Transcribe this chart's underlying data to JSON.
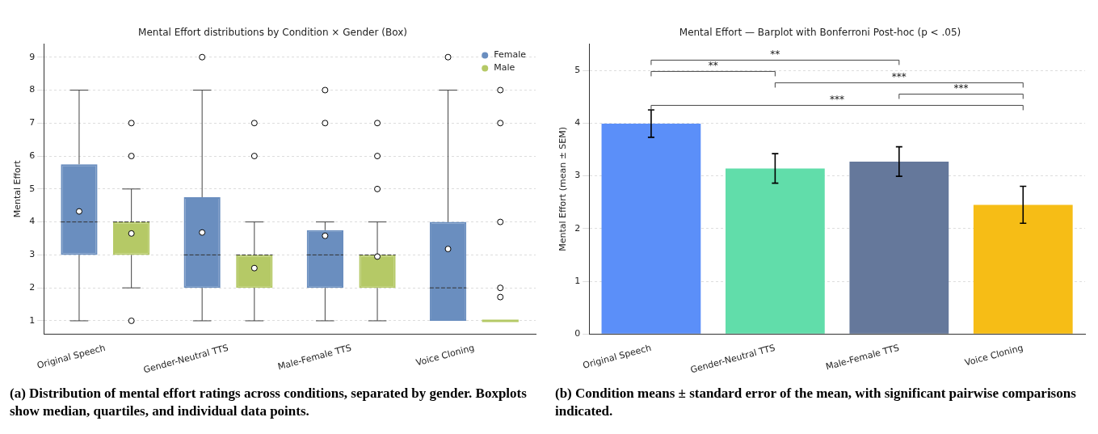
{
  "chart_data": [
    {
      "type": "box",
      "title": "Mental Effort distributions by Condition × Gender (Box)",
      "ylabel": "Mental Effort",
      "categories": [
        "Original Speech",
        "Gender-Neutral TTS",
        "Male-Female TTS",
        "Voice Cloning"
      ],
      "series": [
        {
          "name": "Female",
          "color": "#6a8ebf",
          "boxes": [
            {
              "low": 1,
              "q1": 3,
              "median": 4,
              "q3": 5.75,
              "high": 8,
              "mean": 4.32
            },
            {
              "low": 1,
              "q1": 2,
              "median": 3,
              "q3": 4.75,
              "high": 8,
              "mean": 3.68,
              "outliers": [
                9
              ]
            },
            {
              "low": 1,
              "q1": 2,
              "median": 3,
              "q3": 3.75,
              "high": 4,
              "mean": 3.58,
              "outliers": [
                7,
                8
              ]
            },
            {
              "low": 1,
              "q1": 1,
              "median": 2,
              "q3": 4,
              "high": 8,
              "mean": 3.18,
              "outliers": [
                9
              ]
            }
          ]
        },
        {
          "name": "Male",
          "color": "#b5c966",
          "boxes": [
            {
              "low": 2,
              "q1": 3,
              "median": 4,
              "q3": 4,
              "high": 5,
              "mean": 3.65,
              "outliers": [
                1,
                6,
                7
              ]
            },
            {
              "low": 1,
              "q1": 2,
              "median": 3,
              "q3": 3,
              "high": 4,
              "mean": 2.6,
              "outliers": [
                6,
                7
              ]
            },
            {
              "low": 1,
              "q1": 2,
              "median": 3,
              "q3": 3,
              "high": 4,
              "mean": 2.95,
              "outliers": [
                5,
                6,
                7
              ]
            },
            {
              "low": 1,
              "q1": 1,
              "median": 1,
              "q3": 1,
              "high": 1,
              "mean": 1.72,
              "outliers": [
                2,
                4,
                7,
                8
              ]
            }
          ]
        }
      ],
      "ylim": [
        0.6,
        9.4
      ],
      "yticks": [
        1,
        2,
        3,
        4,
        5,
        6,
        7,
        8,
        9
      ],
      "grid": "y",
      "legend": "top right",
      "annotations": [
        "(a) Distribution of mental effort ratings across conditions, separated by gender. Boxplots show median, quartiles, and individual data points."
      ]
    },
    {
      "type": "bar",
      "title": "Mental Effort — Barplot with Bonferroni Post-hoc (p < .05)",
      "ylabel": "Mental Effort (mean ± SEM)",
      "categories": [
        "Original Speech",
        "Gender-Neutral TTS",
        "Male-Female TTS",
        "Voice Cloning"
      ],
      "values": [
        3.99,
        3.14,
        3.27,
        2.45
      ],
      "colors": [
        "#5b8ff9",
        "#61ddaa",
        "#65789b",
        "#f6bd16"
      ],
      "errors": [
        0.26,
        0.28,
        0.28,
        0.35
      ],
      "ylim": [
        0,
        5.5
      ],
      "yticks": [
        0,
        1,
        2,
        3,
        4,
        5
      ],
      "grid": "y",
      "annotations": [
        "**",
        "**",
        "***",
        "***",
        "***",
        "(b) Condition means ± standard error of the mean, with significant pairwise comparisons indicated."
      ]
    }
  ]
}
